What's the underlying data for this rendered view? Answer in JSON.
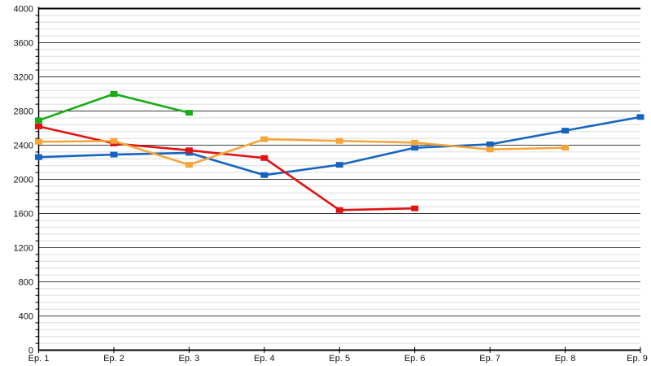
{
  "chart_data": {
    "type": "line",
    "title": "",
    "xlabel": "",
    "ylabel": "",
    "categories": [
      "Ep. 1",
      "Ep. 2",
      "Ep. 3",
      "Ep. 4",
      "Ep. 5",
      "Ep. 6",
      "Ep. 7",
      "Ep. 8",
      "Ep. 9"
    ],
    "series": [
      {
        "name": "blue",
        "color": "#1565c0",
        "values": [
          2260,
          2290,
          2310,
          2050,
          2170,
          2370,
          2410,
          2570,
          2730
        ]
      },
      {
        "name": "green",
        "color": "#17ad17",
        "values": [
          2690,
          3000,
          2780,
          null,
          null,
          null,
          null,
          null,
          null
        ]
      },
      {
        "name": "red",
        "color": "#e01212",
        "values": [
          2620,
          2420,
          2340,
          2250,
          1640,
          1660,
          null,
          null,
          null
        ]
      },
      {
        "name": "orange",
        "color": "#f5a53a",
        "values": [
          2440,
          2450,
          2170,
          2470,
          2450,
          2430,
          2350,
          2370,
          null
        ]
      }
    ],
    "ylim": [
      0,
      4000
    ],
    "y_major_step": 400,
    "y_minor_step": 80,
    "y_tick_labels": [
      "0",
      "400",
      "800",
      "1200",
      "1600",
      "2000",
      "2400",
      "2800",
      "3200",
      "3600",
      "4000"
    ],
    "grid": "horizontal major+minor",
    "legend": "none",
    "style": {
      "background": "#ffffff",
      "minor_grid_color": "#dcdcdc",
      "major_grid_color": "#3c3c3c",
      "frame_color": "#000000",
      "label_color": "#111111"
    }
  }
}
